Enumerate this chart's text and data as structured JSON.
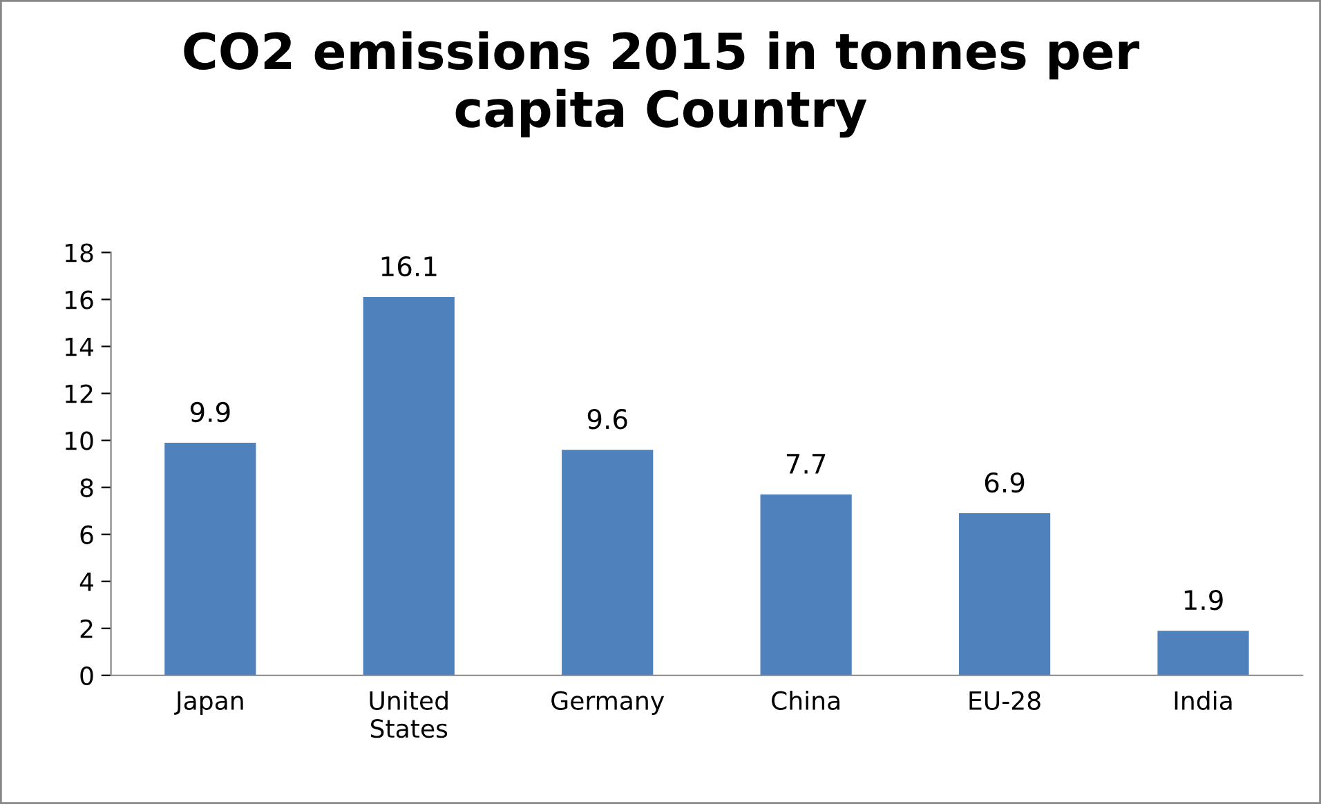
{
  "chart_data": {
    "type": "bar",
    "title": "CO2 emissions 2015 in tonnes per\ncapita Country",
    "categories": [
      "Japan",
      "United\nStates",
      "Germany",
      "China",
      "EU-28",
      "India"
    ],
    "values": [
      9.9,
      16.1,
      9.6,
      7.7,
      6.9,
      1.9
    ],
    "color": "#4f81bd",
    "ylim": [
      0,
      18
    ],
    "yticks": [
      0,
      2,
      4,
      6,
      8,
      10,
      12,
      14,
      16,
      18
    ],
    "data_labels": true,
    "grid": false,
    "legend": false
  }
}
